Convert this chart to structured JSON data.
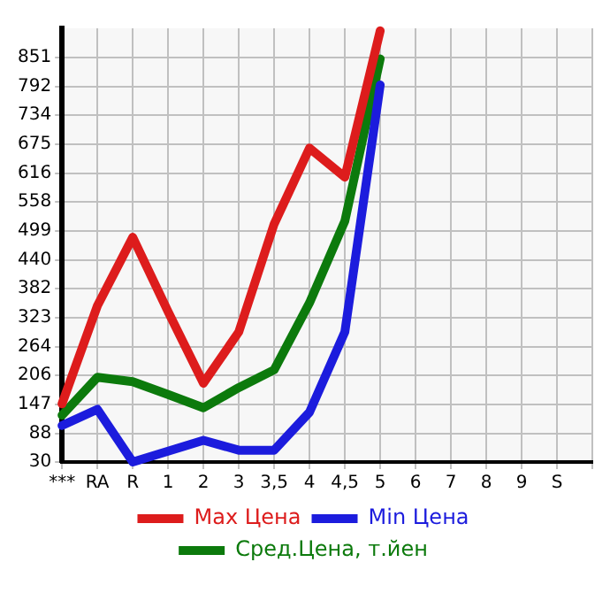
{
  "chart_data": {
    "type": "line",
    "categories": [
      "***",
      "RA",
      "R",
      "1",
      "2",
      "3",
      "3,5",
      "4",
      "4,5",
      "5",
      "6",
      "7",
      "8",
      "9",
      "S"
    ],
    "series": [
      {
        "name": "Max Цена",
        "color": "#dd1c1c",
        "values": [
          148,
          347,
          486,
          335,
          190,
          294,
          513,
          667,
          608,
          905,
          null,
          null,
          null,
          null,
          null
        ]
      },
      {
        "name": "Min Цена",
        "color": "#1c1cdd",
        "values": [
          104,
          137,
          30,
          52,
          74,
          54,
          54,
          131,
          294,
          795,
          null,
          null,
          null,
          null,
          null
        ]
      },
      {
        "name": "Сред.Цена, т.йен",
        "color": "#0c7a0c",
        "values": [
          125,
          202,
          193,
          167,
          140,
          181,
          217,
          353,
          519,
          848,
          null,
          null,
          null,
          null,
          null
        ]
      }
    ],
    "ylim": [
      30,
      910
    ],
    "yticks": [
      30,
      88,
      147,
      206,
      264,
      323,
      382,
      440,
      499,
      558,
      616,
      675,
      734,
      792,
      851
    ],
    "grid": true,
    "legend": "bottom",
    "marker": "none",
    "line_style": "solid"
  }
}
